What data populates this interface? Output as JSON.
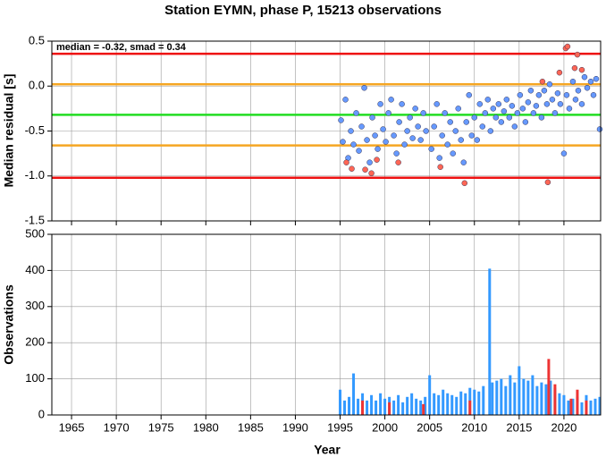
{
  "chart_data": [
    {
      "type": "scatter",
      "title": "Station EYMN, phase P, 15213 observations",
      "ylabel": "Median residual [s]",
      "annotation": "median = -0.32, smad = 0.34",
      "xlim": [
        1962.8,
        2024.1
      ],
      "ylim": [
        -1.5,
        0.5
      ],
      "xticks": [
        1965,
        1970,
        1975,
        1980,
        1985,
        1990,
        1995,
        2000,
        2005,
        2010,
        2015,
        2020
      ],
      "yticks": [
        0.5,
        {
          "value": 0,
          "label": "0.0"
        },
        -0.5,
        {
          "value": -1,
          "label": "-1.0"
        },
        -1.5
      ],
      "grid": true,
      "hlines": [
        {
          "value": 0.36,
          "color": "#ee1111"
        },
        {
          "value": 0.02,
          "color": "#f5a623"
        },
        {
          "value": -0.32,
          "color": "#22dd22"
        },
        {
          "value": -0.66,
          "color": "#f5a623"
        },
        {
          "value": -1.02,
          "color": "#ee1111"
        }
      ],
      "series": [
        {
          "color": "#6699ff",
          "x": [
            1995.1,
            1995.3,
            1995.6,
            1995.9,
            1996.2,
            1996.5,
            1996.8,
            1997.1,
            1997.4,
            1997.7,
            1998.0,
            1998.3,
            1998.6,
            1998.9,
            1999.2,
            1999.5,
            1999.8,
            2000.1,
            2000.4,
            2000.7,
            2001.0,
            2001.3,
            2001.6,
            2001.9,
            2002.2,
            2002.5,
            2002.8,
            2003.1,
            2003.4,
            2003.7,
            2004.0,
            2004.3,
            2004.6,
            2005.2,
            2005.5,
            2005.8,
            2006.1,
            2006.4,
            2006.7,
            2007.0,
            2007.3,
            2007.6,
            2007.9,
            2008.2,
            2008.5,
            2008.8,
            2009.1,
            2009.4,
            2009.7,
            2010.0,
            2010.3,
            2010.6,
            2010.9,
            2011.2,
            2011.5,
            2011.8,
            2012.1,
            2012.4,
            2012.7,
            2013.0,
            2013.3,
            2013.6,
            2013.9,
            2014.2,
            2014.5,
            2014.8,
            2015.1,
            2015.4,
            2015.7,
            2016.0,
            2016.3,
            2016.6,
            2016.9,
            2017.2,
            2017.5,
            2017.8,
            2018.1,
            2018.4,
            2018.7,
            2019.0,
            2019.3,
            2019.6,
            2020.0,
            2020.3,
            2020.6,
            2021.0,
            2021.3,
            2021.6,
            2022.0,
            2022.3,
            2022.6,
            2023.0,
            2023.3,
            2023.6,
            2024.0
          ],
          "values": [
            -0.38,
            -0.62,
            -0.15,
            -0.8,
            -0.5,
            -0.65,
            -0.3,
            -0.72,
            -0.45,
            -0.02,
            -0.6,
            -0.85,
            -0.35,
            -0.55,
            -0.7,
            -0.2,
            -0.48,
            -0.62,
            -0.3,
            -0.15,
            -0.55,
            -0.75,
            -0.4,
            -0.2,
            -0.65,
            -0.5,
            -0.35,
            -0.58,
            -0.25,
            -0.45,
            -0.6,
            -0.3,
            -0.5,
            -0.7,
            -0.45,
            -0.2,
            -0.8,
            -0.55,
            -0.3,
            -0.65,
            -0.4,
            -0.75,
            -0.5,
            -0.25,
            -0.6,
            -0.85,
            -0.4,
            -0.1,
            -0.55,
            -0.35,
            -0.6,
            -0.2,
            -0.45,
            -0.3,
            -0.15,
            -0.5,
            -0.25,
            -0.35,
            -0.2,
            -0.4,
            -0.28,
            -0.15,
            -0.35,
            -0.22,
            -0.45,
            -0.3,
            -0.1,
            -0.25,
            -0.4,
            -0.18,
            -0.05,
            -0.3,
            -0.22,
            -0.1,
            -0.35,
            -0.05,
            -0.2,
            0.02,
            -0.15,
            -0.3,
            -0.08,
            -0.2,
            -0.75,
            -0.1,
            -0.25,
            0.05,
            -0.15,
            -0.05,
            -0.2,
            0.1,
            -0.02,
            0.05,
            -0.1,
            0.08,
            -0.48
          ]
        },
        {
          "color": "#ff6655",
          "x": [
            1995.7,
            1996.3,
            1997.8,
            1998.5,
            1999.1,
            2001.5,
            2006.2,
            2008.9,
            2017.6,
            2018.2,
            2019.5,
            2020.2,
            2020.4,
            2021.2,
            2021.5,
            2022.0
          ],
          "values": [
            -0.85,
            -0.92,
            -0.93,
            -0.97,
            -0.82,
            -0.85,
            -0.9,
            -1.08,
            0.05,
            -1.07,
            0.15,
            0.42,
            0.44,
            0.2,
            0.35,
            0.18
          ]
        }
      ]
    },
    {
      "type": "bar",
      "ylabel": "Observations",
      "xlabel": "Year",
      "xlim": [
        1962.8,
        2024.1
      ],
      "ylim": [
        0,
        500
      ],
      "xticks": [
        1965,
        1970,
        1975,
        1980,
        1985,
        1990,
        1995,
        2000,
        2005,
        2010,
        2015,
        2020
      ],
      "yticks": [
        0,
        100,
        200,
        300,
        400,
        500
      ],
      "grid": true,
      "series": [
        {
          "color": "#3399ff",
          "x": [
            1995,
            1995.5,
            1996,
            1996.5,
            1997,
            1997.5,
            1998,
            1998.5,
            1999,
            1999.5,
            2000,
            2000.5,
            2001,
            2001.5,
            2002,
            2002.5,
            2003,
            2003.5,
            2004,
            2004.5,
            2005,
            2005.5,
            2006,
            2006.5,
            2007,
            2007.5,
            2008,
            2008.5,
            2009,
            2009.5,
            2010,
            2010.5,
            2011,
            2011.7,
            2012,
            2012.5,
            2013,
            2013.5,
            2014,
            2014.5,
            2015,
            2015.5,
            2016,
            2016.5,
            2017,
            2017.5,
            2018,
            2018.5,
            2019,
            2019.5,
            2020,
            2020.5,
            2021,
            2021.5,
            2022,
            2022.5,
            2023,
            2023.5,
            2024
          ],
          "values": [
            70,
            40,
            50,
            115,
            45,
            60,
            40,
            55,
            40,
            60,
            45,
            50,
            40,
            55,
            35,
            50,
            60,
            45,
            40,
            50,
            110,
            60,
            55,
            70,
            60,
            55,
            50,
            65,
            60,
            75,
            70,
            65,
            80,
            405,
            90,
            95,
            100,
            80,
            110,
            90,
            135,
            100,
            95,
            110,
            80,
            90,
            85,
            95,
            75,
            60,
            55,
            40,
            45,
            50,
            35,
            55,
            40,
            45,
            50
          ]
        },
        {
          "color": "#ee3333",
          "x": [
            1997.5,
            2000.5,
            2004.3,
            2009.5,
            2018.3,
            2019,
            2020.8,
            2021.5,
            2022.5
          ],
          "values": [
            40,
            35,
            30,
            40,
            155,
            85,
            45,
            70,
            40
          ]
        }
      ]
    }
  ]
}
